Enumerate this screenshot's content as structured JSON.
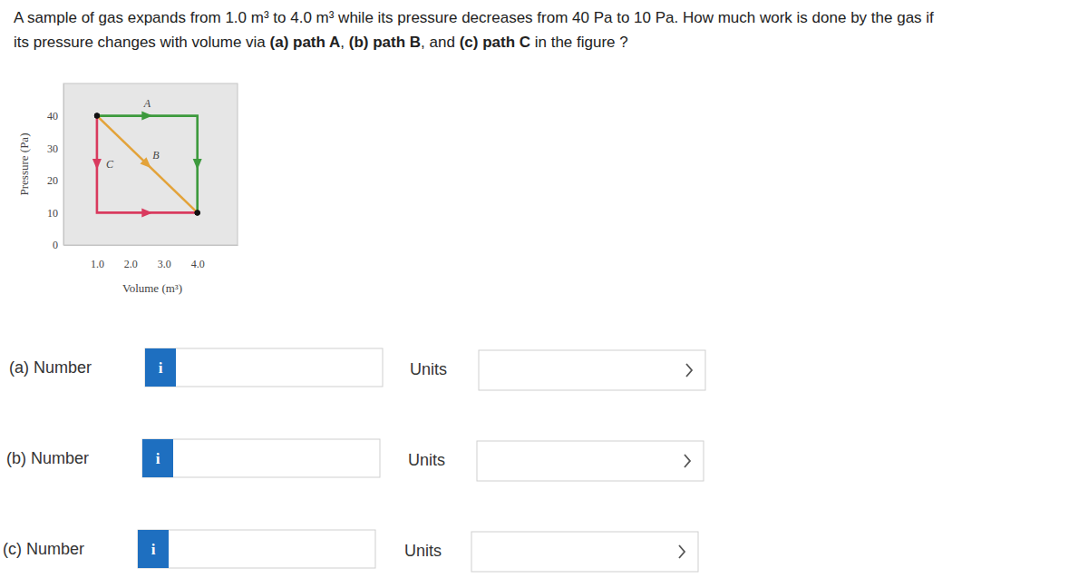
{
  "question": {
    "lines": [
      [
        {
          "text": "A sample of gas expands from 1.0 m³ to 4.0 m³ while its pressure decreases from 40 Pa to 10 Pa. How much work is done by the gas if"
        }
      ],
      [
        {
          "text": "its pressure changes with volume via "
        },
        {
          "text": "(a) path A",
          "bold": true
        },
        {
          "text": ", "
        },
        {
          "text": "(b) path B",
          "bold": true
        },
        {
          "text": ", and "
        },
        {
          "text": "(c) path C",
          "bold": true
        },
        {
          "text": " in the figure ?"
        }
      ]
    ]
  },
  "chart_data": {
    "type": "line",
    "xlabel": "Volume (m³)",
    "ylabel": "Pressure (Pa)",
    "xlim": [
      0,
      5.2
    ],
    "ylim": [
      0,
      50
    ],
    "xticks": [
      {
        "value": 1,
        "label": "1.0"
      },
      {
        "value": 2,
        "label": "2.0"
      },
      {
        "value": 3,
        "label": "3.0"
      },
      {
        "value": 4,
        "label": "4.0"
      }
    ],
    "yticks": [
      0,
      10,
      20,
      30,
      40
    ],
    "grid": false,
    "series": [
      {
        "name": "A",
        "color": "#3d9a3d",
        "x": [
          1,
          4,
          4
        ],
        "values": [
          40,
          40,
          10
        ]
      },
      {
        "name": "B",
        "color": "#e3a33a",
        "x": [
          1,
          4
        ],
        "values": [
          40,
          10
        ]
      },
      {
        "name": "C",
        "color": "#d93a5e",
        "x": [
          1,
          1,
          4
        ],
        "values": [
          40,
          10,
          10
        ]
      }
    ]
  },
  "form": {
    "rows": [
      {
        "label": "(a) Number",
        "info": "i",
        "units_label": "Units"
      },
      {
        "label": "(b) Number",
        "info": "i",
        "units_label": "Units"
      },
      {
        "label": "(c) Number",
        "info": "i",
        "units_label": "Units"
      }
    ]
  }
}
